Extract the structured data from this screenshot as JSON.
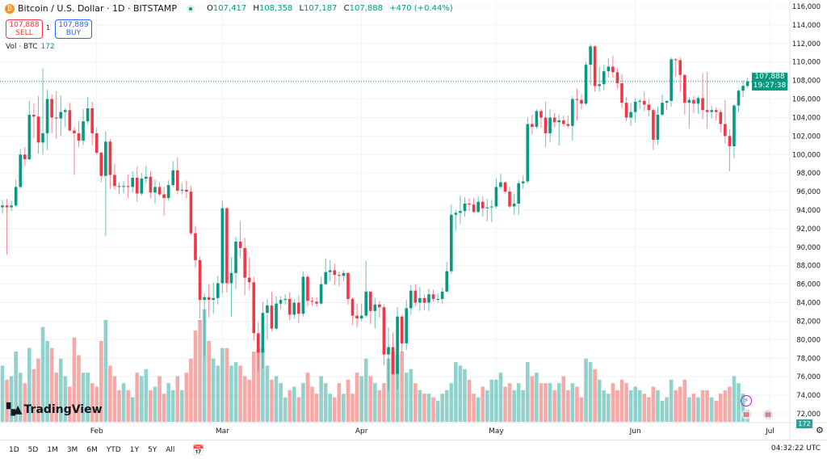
{
  "header": {
    "symbol": "Bitcoin / U.S. Dollar · 1D · BITSTAMP",
    "coin_glyph": "₿",
    "ohlc": {
      "o_label": "O",
      "o": "107,417",
      "h_label": "H",
      "h": "108,358",
      "l_label": "L",
      "l": "107,187",
      "c_label": "C",
      "c": "107,888",
      "change": "+470 (+0.44%)"
    },
    "sell_price": "107,888",
    "sell_label": "SELL",
    "spread": "1",
    "buy_price": "107,889",
    "buy_label": "BUY",
    "vol_label": "Vol · BTC",
    "vol_value": "172"
  },
  "last_price": {
    "price": "107,888",
    "countdown": "19:27:38",
    "value": 107888
  },
  "volume_badge": "172",
  "logo": {
    "mark": "TV",
    "text": "TradingView"
  },
  "bottom_bar": {
    "ranges": [
      "1D",
      "5D",
      "1M",
      "3M",
      "6M",
      "YTD",
      "1Y",
      "5Y",
      "All"
    ],
    "calendar_icon": "calendar-range-icon",
    "clock": "04:32:22 UTC"
  },
  "colors": {
    "up": "#089981",
    "down": "#f23645",
    "vol_up": "#26a69a",
    "vol_down": "#ef5350",
    "accent": "#2962ff"
  },
  "chart_data": {
    "type": "candlestick",
    "title": "Bitcoin / U.S. Dollar · 1D · BITSTAMP",
    "ylim": [
      72000,
      116000
    ],
    "y_ticks": [
      "116,000",
      "114,000",
      "112,000",
      "110,000",
      "108,000",
      "106,000",
      "104,000",
      "102,000",
      "100,000",
      "98,000",
      "96,000",
      "94,000",
      "92,000",
      "90,000",
      "88,000",
      "86,000",
      "84,000",
      "82,000",
      "80,000",
      "78,000",
      "76,000",
      "74,000",
      "72,000"
    ],
    "x_ticks": [
      "Feb",
      "Mar",
      "Apr",
      "May",
      "Jun",
      "Jul"
    ],
    "grid": true,
    "candles_ohlc": [
      [
        94300,
        95100,
        93600,
        94500
      ],
      [
        94500,
        95200,
        89200,
        94300
      ],
      [
        94300,
        95000,
        93900,
        94500
      ],
      [
        94500,
        97300,
        94300,
        96500
      ],
      [
        96500,
        100600,
        96300,
        100000
      ],
      [
        100000,
        100800,
        98800,
        99500
      ],
      [
        99500,
        105800,
        99400,
        104300
      ],
      [
        104300,
        105500,
        101800,
        104100
      ],
      [
        104100,
        106300,
        100100,
        101300
      ],
      [
        101300,
        109300,
        100000,
        102300
      ],
      [
        102300,
        107000,
        100500,
        106000
      ],
      [
        106000,
        106500,
        102300,
        104000
      ],
      [
        104000,
        106800,
        101700,
        103900
      ],
      [
        103900,
        106400,
        102000,
        104600
      ],
      [
        104600,
        105000,
        103000,
        104800
      ],
      [
        104800,
        105600,
        102500,
        102600
      ],
      [
        102600,
        103000,
        97800,
        102300
      ],
      [
        102300,
        103600,
        100800,
        101500
      ],
      [
        101500,
        104900,
        101000,
        103600
      ],
      [
        103600,
        106200,
        103300,
        105000
      ],
      [
        105000,
        105700,
        101000,
        102300
      ],
      [
        102300,
        102900,
        100000,
        100200
      ],
      [
        100200,
        100300,
        97000,
        97700
      ],
      [
        97700,
        102500,
        91200,
        101400
      ],
      [
        101400,
        101700,
        96300,
        97800
      ],
      [
        97800,
        99000,
        96200,
        96600
      ],
      [
        96600,
        97000,
        95700,
        96500
      ],
      [
        96500,
        97100,
        95800,
        96600
      ],
      [
        96600,
        97800,
        95300,
        96500
      ],
      [
        96500,
        98200,
        95900,
        97500
      ],
      [
        97500,
        98700,
        94900,
        95800
      ],
      [
        95800,
        98000,
        95600,
        97400
      ],
      [
        97400,
        98800,
        96900,
        97600
      ],
      [
        97600,
        98200,
        95300,
        95900
      ],
      [
        95900,
        97300,
        94700,
        96500
      ],
      [
        96500,
        97000,
        95500,
        95700
      ],
      [
        95700,
        96500,
        93400,
        95300
      ],
      [
        95300,
        97200,
        95000,
        96700
      ],
      [
        96700,
        99300,
        96500,
        98300
      ],
      [
        98300,
        99700,
        95700,
        96100
      ],
      [
        96100,
        96900,
        95700,
        96200
      ],
      [
        96200,
        97200,
        95300,
        96000
      ],
      [
        96000,
        96600,
        91300,
        91500
      ],
      [
        91500,
        92300,
        87800,
        88600
      ],
      [
        88600,
        89000,
        82300,
        84300
      ],
      [
        84300,
        85000,
        78200,
        84600
      ],
      [
        84600,
        86000,
        82400,
        84300
      ],
      [
        84300,
        86200,
        82800,
        84500
      ],
      [
        84500,
        86900,
        83800,
        86100
      ],
      [
        86100,
        95000,
        85000,
        94200
      ],
      [
        94200,
        94300,
        85100,
        86100
      ],
      [
        86100,
        88900,
        82500,
        87200
      ],
      [
        87200,
        91100,
        85500,
        90600
      ],
      [
        90600,
        92800,
        88900,
        89900
      ],
      [
        89900,
        91000,
        84800,
        86700
      ],
      [
        86700,
        88900,
        85400,
        86200
      ],
      [
        86200,
        86800,
        79900,
        80700
      ],
      [
        80700,
        81900,
        76600,
        78600
      ],
      [
        78600,
        84100,
        76900,
        82900
      ],
      [
        82900,
        84400,
        80000,
        83700
      ],
      [
        83700,
        85200,
        80900,
        81200
      ],
      [
        81200,
        84700,
        81000,
        83900
      ],
      [
        83900,
        84700,
        83300,
        84300
      ],
      [
        84300,
        84900,
        83800,
        84400
      ],
      [
        84400,
        85100,
        82100,
        82700
      ],
      [
        82700,
        84400,
        82300,
        84000
      ],
      [
        84000,
        84800,
        81800,
        82800
      ],
      [
        82800,
        87400,
        82500,
        86800
      ],
      [
        86800,
        87000,
        83600,
        84200
      ],
      [
        84200,
        84600,
        83700,
        84100
      ],
      [
        84100,
        84600,
        83600,
        83900
      ],
      [
        83900,
        86800,
        83800,
        86000
      ],
      [
        86000,
        88800,
        85900,
        87300
      ],
      [
        87300,
        88600,
        86300,
        87500
      ],
      [
        87500,
        88200,
        85900,
        87000
      ],
      [
        87000,
        87400,
        85800,
        86900
      ],
      [
        86900,
        87500,
        86300,
        87200
      ],
      [
        87200,
        87300,
        83800,
        84400
      ],
      [
        84400,
        84600,
        81600,
        82600
      ],
      [
        82600,
        83900,
        81300,
        82300
      ],
      [
        82300,
        83900,
        82000,
        82600
      ],
      [
        82600,
        88500,
        82400,
        85200
      ],
      [
        85200,
        85200,
        81700,
        83100
      ],
      [
        83100,
        84500,
        81200,
        83800
      ],
      [
        83800,
        84200,
        82400,
        83500
      ],
      [
        83500,
        83800,
        77200,
        78400
      ],
      [
        78400,
        81300,
        74500,
        79200
      ],
      [
        79200,
        80800,
        76200,
        76300
      ],
      [
        76300,
        83500,
        74600,
        82500
      ],
      [
        82500,
        82700,
        78600,
        79600
      ],
      [
        79600,
        84300,
        78900,
        83400
      ],
      [
        83400,
        85900,
        82700,
        85300
      ],
      [
        85300,
        86000,
        83600,
        84000
      ],
      [
        84000,
        85700,
        83100,
        84500
      ],
      [
        84500,
        84900,
        83200,
        84000
      ],
      [
        84000,
        85500,
        83100,
        84900
      ],
      [
        84900,
        85400,
        84100,
        84400
      ],
      [
        84400,
        85000,
        84000,
        84400
      ],
      [
        84400,
        85600,
        83900,
        85200
      ],
      [
        85200,
        88400,
        85100,
        87400
      ],
      [
        87400,
        94600,
        87100,
        93500
      ],
      [
        93500,
        94000,
        91800,
        93700
      ],
      [
        93700,
        95600,
        92500,
        93900
      ],
      [
        93900,
        95400,
        93300,
        94700
      ],
      [
        94700,
        95300,
        93900,
        94600
      ],
      [
        94600,
        95300,
        93700,
        93800
      ],
      [
        93800,
        95500,
        93700,
        94900
      ],
      [
        94900,
        95500,
        93300,
        94200
      ],
      [
        94200,
        95200,
        92800,
        94300
      ],
      [
        94300,
        95100,
        92700,
        94400
      ],
      [
        94400,
        97400,
        94200,
        96500
      ],
      [
        96500,
        97900,
        96300,
        97000
      ],
      [
        97000,
        97100,
        95800,
        96000
      ],
      [
        96000,
        96500,
        94200,
        94400
      ],
      [
        94400,
        95700,
        93500,
        94700
      ],
      [
        94700,
        97200,
        93500,
        96900
      ],
      [
        96900,
        97700,
        96300,
        97100
      ],
      [
        97100,
        104000,
        96900,
        103300
      ],
      [
        103300,
        104300,
        102200,
        103000
      ],
      [
        103000,
        104900,
        102800,
        104700
      ],
      [
        104700,
        104900,
        102900,
        104000
      ],
      [
        104000,
        105700,
        100800,
        102300
      ],
      [
        102300,
        104900,
        101300,
        104000
      ],
      [
        104000,
        104500,
        102900,
        103500
      ],
      [
        103500,
        104300,
        101000,
        103700
      ],
      [
        103700,
        104200,
        103000,
        103300
      ],
      [
        103300,
        104200,
        102900,
        103100
      ],
      [
        103100,
        106300,
        101500,
        106000
      ],
      [
        106000,
        107100,
        103700,
        105900
      ],
      [
        105900,
        106500,
        104900,
        105500
      ],
      [
        105500,
        110000,
        105300,
        109700
      ],
      [
        109700,
        111900,
        107500,
        111700
      ],
      [
        111700,
        111800,
        106800,
        107400
      ],
      [
        107400,
        109500,
        106800,
        107600
      ],
      [
        107600,
        109700,
        107000,
        109000
      ],
      [
        109000,
        110400,
        108300,
        109500
      ],
      [
        109500,
        110700,
        108300,
        108900
      ],
      [
        108900,
        109300,
        107100,
        107700
      ],
      [
        107700,
        108700,
        105000,
        105600
      ],
      [
        105600,
        106200,
        103600,
        104000
      ],
      [
        104000,
        105600,
        103100,
        104600
      ],
      [
        104600,
        106100,
        103500,
        105700
      ],
      [
        105700,
        106000,
        104900,
        105800
      ],
      [
        105800,
        106800,
        104700,
        105400
      ],
      [
        105400,
        106000,
        104100,
        104800
      ],
      [
        104800,
        105000,
        100500,
        101600
      ],
      [
        101600,
        105200,
        101100,
        104300
      ],
      [
        104300,
        106500,
        104200,
        105600
      ],
      [
        105600,
        105800,
        104800,
        105800
      ],
      [
        105800,
        110500,
        105200,
        110300
      ],
      [
        110300,
        110400,
        108400,
        110200
      ],
      [
        110200,
        110500,
        106800,
        108600
      ],
      [
        108600,
        108700,
        104300,
        105600
      ],
      [
        105600,
        106200,
        102800,
        105900
      ],
      [
        105900,
        106300,
        104500,
        105500
      ],
      [
        105500,
        106300,
        104400,
        106100
      ],
      [
        106100,
        108800,
        103800,
        104800
      ],
      [
        104800,
        108900,
        102800,
        104600
      ],
      [
        104600,
        105300,
        103900,
        104800
      ],
      [
        104800,
        105100,
        103700,
        104600
      ],
      [
        104600,
        104900,
        102400,
        103300
      ],
      [
        103300,
        105900,
        101200,
        102000
      ],
      [
        102000,
        102700,
        98200,
        100900
      ],
      [
        100900,
        105400,
        99600,
        105300
      ],
      [
        105300,
        107000,
        104600,
        106900
      ],
      [
        106900,
        108000,
        106200,
        107417
      ],
      [
        107417,
        108358,
        107187,
        107888
      ]
    ],
    "volume_btc": [
      800,
      600,
      650,
      1000,
      700,
      550,
      1050,
      750,
      900,
      1350,
      1150,
      1050,
      700,
      900,
      650,
      500,
      1200,
      950,
      700,
      700,
      550,
      500,
      1150,
      1450,
      800,
      650,
      450,
      550,
      450,
      350,
      700,
      650,
      750,
      450,
      500,
      650,
      400,
      550,
      450,
      650,
      450,
      700,
      900,
      1300,
      1450,
      1600,
      1150,
      900,
      800,
      1050,
      1050,
      800,
      850,
      800,
      650,
      600,
      1000,
      1050,
      1050,
      800,
      600,
      650,
      550,
      350,
      450,
      500,
      350,
      550,
      700,
      500,
      400,
      650,
      550,
      400,
      350,
      550,
      400,
      600,
      400,
      700,
      650,
      900,
      650,
      550,
      450,
      550,
      900,
      1000,
      950,
      1000,
      700,
      750,
      550,
      450,
      400,
      400,
      350,
      300,
      400,
      450,
      550,
      850,
      800,
      750,
      600,
      400,
      350,
      500,
      450,
      600,
      600,
      700,
      500,
      550,
      450,
      550,
      450,
      850,
      650,
      700,
      550,
      550,
      550,
      450,
      550,
      650,
      450,
      550,
      500,
      350,
      900,
      850,
      750,
      600,
      450,
      400,
      550,
      450,
      600,
      550,
      450,
      500,
      450,
      400,
      350,
      500,
      450,
      300,
      350,
      600,
      450,
      500,
      600,
      350,
      400,
      350,
      450,
      450,
      350,
      300,
      400,
      450,
      500,
      650,
      550,
      400,
      172
    ]
  }
}
